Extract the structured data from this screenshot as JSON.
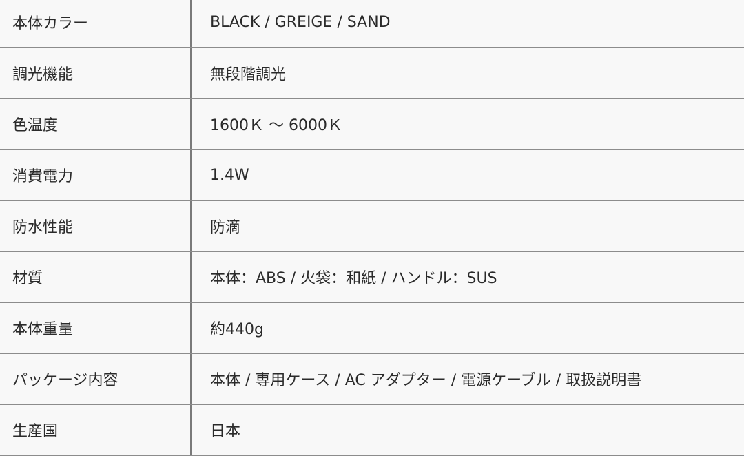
{
  "specs": [
    {
      "label": "本体カラー",
      "value": "BLACK / GREIGE / SAND"
    },
    {
      "label": "調光機能",
      "value": "無段階調光"
    },
    {
      "label": "色温度",
      "value": "1600Ｋ 〜 6000Ｋ"
    },
    {
      "label": "消費電力",
      "value": "1.4W"
    },
    {
      "label": "防水性能",
      "value": "防滴"
    },
    {
      "label": "材質",
      "value": "本体：ABS / 火袋：和紙 / ハンドル：SUS"
    },
    {
      "label": "本体重量",
      "value": "約440g"
    },
    {
      "label": "パッケージ内容",
      "value": "本体 / 専用ケース / AC アダプター / 電源ケーブル / 取扱説明書"
    },
    {
      "label": "生産国",
      "value": "日本"
    }
  ]
}
